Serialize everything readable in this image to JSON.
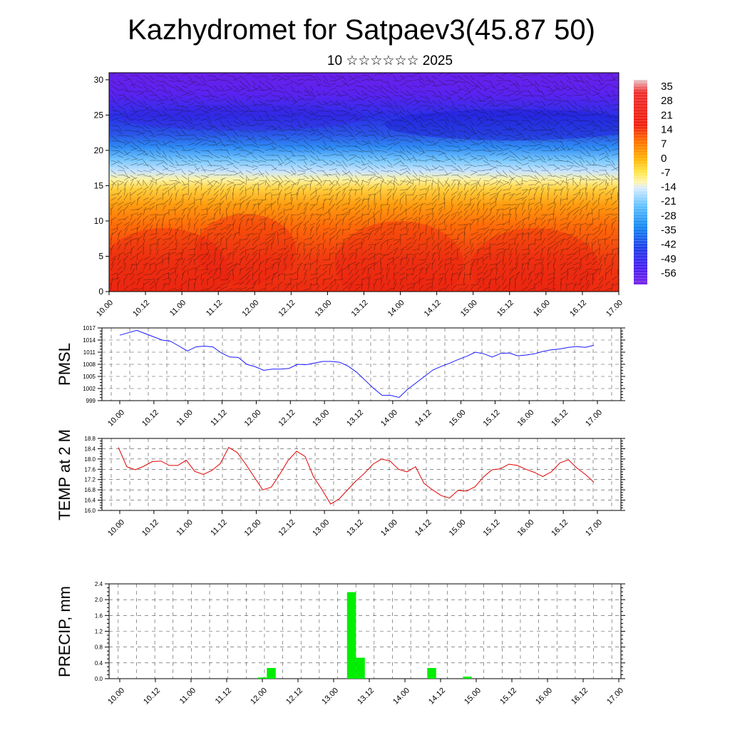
{
  "title": "Kazhydromet for Satpaev3(45.87 50)",
  "subtitle": "10 ☆☆☆☆☆☆ 2025",
  "colors": {
    "pressure_line": "#1a1aff",
    "temp_line": "#e00000",
    "precip_bar": "#00ee00",
    "colorbar": [
      "#e8c8c8",
      "#ee2222",
      "#ff7a00",
      "#ffb000",
      "#ffe850",
      "#fff6a8",
      "#c8e0ff",
      "#68c8ff",
      "#1890ff",
      "#2050e0",
      "#5020f0",
      "#7a20e8"
    ]
  },
  "chart_data": [
    {
      "type": "heatmap",
      "description_of_fill": "temperature cross-section with wind barbs",
      "x_ticks": [
        "10.00",
        "10.12",
        "11.00",
        "11.12",
        "12.00",
        "12.12",
        "13.00",
        "13.12",
        "14.00",
        "14.12",
        "15.00",
        "15.12",
        "16.00",
        "16.12",
        "17.00"
      ],
      "y_ticks": [
        "0",
        "5",
        "10",
        "15",
        "20",
        "25",
        "30"
      ],
      "ylim": [
        0,
        31
      ],
      "colorbar_labels": [
        "35",
        "28",
        "21",
        "14",
        "7",
        "0",
        "-7",
        "-14",
        "-21",
        "-28",
        "-35",
        "-42",
        "-49",
        "-56"
      ]
    },
    {
      "type": "line",
      "ylabel": "PMSL",
      "ylim": [
        999,
        1017
      ],
      "y_ticks": [
        "1017",
        "1014",
        "1011",
        "1008",
        "1005",
        "1002",
        "999"
      ],
      "x_ticks": [
        "10.00",
        "10.12",
        "11.00",
        "11.12",
        "12.00",
        "12.12",
        "13.00",
        "13.12",
        "14.00",
        "14.12",
        "15.00",
        "15.12",
        "16.00",
        "16.12",
        "17.00"
      ],
      "values": [
        1015.2,
        1015.8,
        1016.4,
        1015.6,
        1014.8,
        1014.0,
        1013.7,
        1012.5,
        1011.3,
        1012.3,
        1012.5,
        1012.3,
        1010.8,
        1009.8,
        1009.7,
        1008.0,
        1007.4,
        1006.5,
        1006.8,
        1006.8,
        1007.0,
        1008.0,
        1007.9,
        1008.3,
        1008.7,
        1008.7,
        1008.5,
        1007.5,
        1006.0,
        1004.0,
        1002.0,
        1000.3,
        1000.3,
        999.8,
        1001.8,
        1003.4,
        1005.0,
        1006.6,
        1007.5,
        1008.3,
        1009.2,
        1010.0,
        1011.0,
        1010.6,
        1009.8,
        1010.7,
        1010.8,
        1010.1,
        1010.3,
        1010.6,
        1011.2,
        1011.6,
        1011.8,
        1012.2,
        1012.4,
        1012.2,
        1012.7
      ],
      "grid": "dashed"
    },
    {
      "type": "line",
      "ylabel": "TEMP at 2 M",
      "ylim": [
        16.0,
        18.8
      ],
      "y_ticks": [
        "18.8",
        "18.4",
        "18.0",
        "17.6",
        "17.2",
        "16.8",
        "16.4",
        "16.0"
      ],
      "x_ticks": [
        "10.00",
        "10.12",
        "11.00",
        "11.12",
        "12.00",
        "12.12",
        "13.00",
        "13.12",
        "14.00",
        "14.12",
        "15.00",
        "15.12",
        "16.00",
        "16.12",
        "17.00"
      ],
      "values": [
        18.45,
        17.7,
        17.58,
        17.72,
        17.9,
        17.92,
        17.75,
        17.75,
        17.95,
        17.52,
        17.4,
        17.55,
        17.82,
        18.45,
        18.25,
        17.8,
        17.3,
        16.8,
        16.9,
        17.4,
        17.95,
        18.3,
        18.1,
        17.3,
        16.8,
        16.25,
        16.45,
        16.8,
        17.15,
        17.45,
        17.8,
        18.0,
        17.92,
        17.6,
        17.5,
        17.7,
        17.05,
        16.8,
        16.58,
        16.48,
        16.78,
        16.75,
        16.92,
        17.3,
        17.58,
        17.62,
        17.8,
        17.75,
        17.6,
        17.48,
        17.32,
        17.5,
        17.85,
        17.97,
        17.65,
        17.4,
        17.1
      ],
      "grid": "dashed"
    },
    {
      "type": "bar",
      "ylabel": "PRECIP, mm",
      "ylim": [
        0,
        2.4
      ],
      "y_ticks": [
        "2.4",
        "2.0",
        "1.6",
        "1.2",
        "0.8",
        "0.4",
        "0.0"
      ],
      "x_ticks": [
        "10.00",
        "10.12",
        "11.00",
        "11.12",
        "12.00",
        "12.12",
        "13.00",
        "13.12",
        "14.00",
        "14.12",
        "15.00",
        "15.12",
        "16.00",
        "16.12",
        "17.00"
      ],
      "bars": [
        {
          "step": 16,
          "value": 0.03
        },
        {
          "step": 17,
          "value": 0.27
        },
        {
          "step": 26,
          "value": 2.19
        },
        {
          "step": 27,
          "value": 0.53
        },
        {
          "step": 35,
          "value": 0.27
        },
        {
          "step": 39,
          "value": 0.05
        }
      ],
      "grid": "dashed"
    }
  ]
}
